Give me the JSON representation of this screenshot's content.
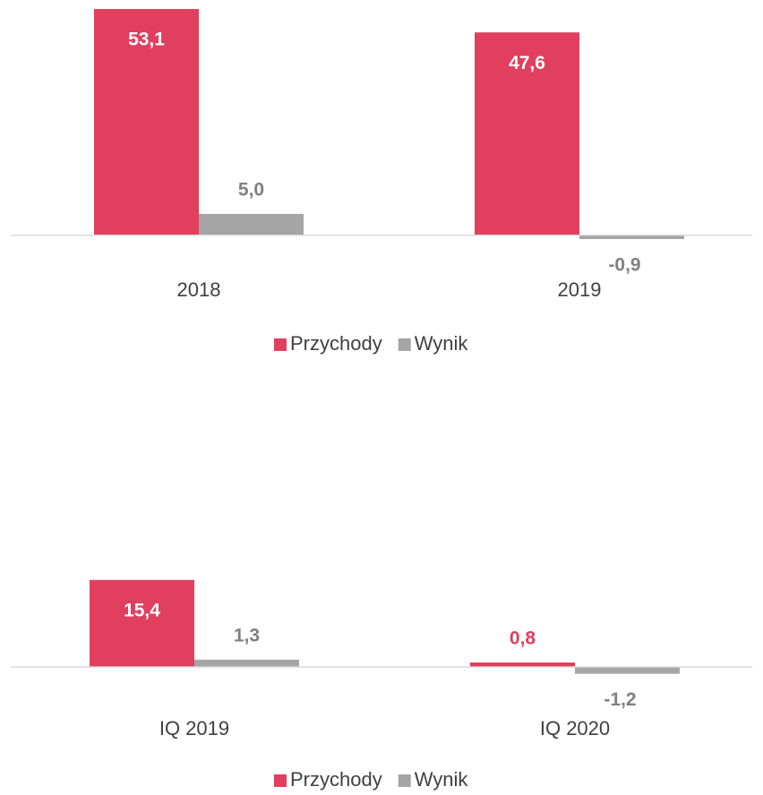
{
  "chart_data": [
    {
      "type": "bar",
      "categories": [
        "2018",
        "2019"
      ],
      "series": [
        {
          "name": "Przychody",
          "color": "#e0405e",
          "values": [
            53.1,
            47.6
          ],
          "value_labels": [
            "53,1",
            "47,6"
          ]
        },
        {
          "name": "Wynik",
          "color": "#a5a5a5",
          "values": [
            5.0,
            -0.9
          ],
          "value_labels": [
            "5,0",
            "-0,9"
          ]
        }
      ],
      "ylim": [
        -3,
        55
      ],
      "legend": "bottom"
    },
    {
      "type": "bar",
      "categories": [
        "IQ 2019",
        "IQ 2020"
      ],
      "series": [
        {
          "name": "Przychody",
          "color": "#e0405e",
          "values": [
            15.4,
            0.8
          ],
          "value_labels": [
            "15,4",
            "0,8"
          ]
        },
        {
          "name": "Wynik",
          "color": "#a5a5a5",
          "values": [
            1.3,
            -1.2
          ],
          "value_labels": [
            "1,3",
            "-1,2"
          ]
        }
      ],
      "ylim": [
        -3,
        16
      ],
      "legend": "bottom"
    }
  ]
}
